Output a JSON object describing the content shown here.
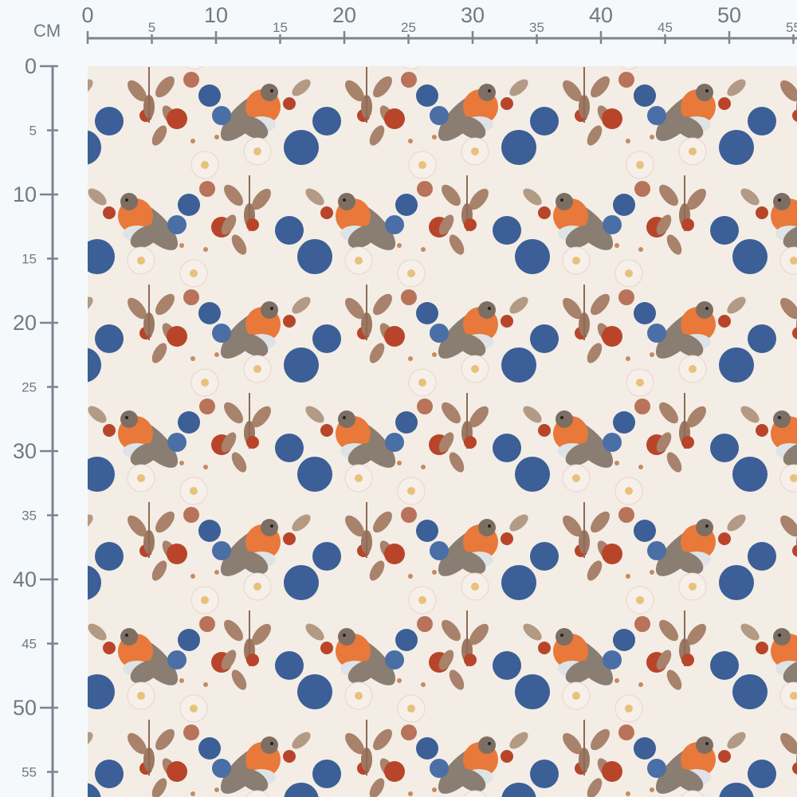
{
  "ruler": {
    "unit": "CM",
    "color": "#7a8590",
    "horizontal": {
      "major_labels": [
        "0",
        "10",
        "20",
        "30",
        "40",
        "50"
      ],
      "minor_labels": [
        "5",
        "15",
        "25",
        "35",
        "45",
        "55"
      ]
    },
    "vertical": {
      "major_labels": [
        "0",
        "10",
        "20",
        "30",
        "40",
        "50"
      ],
      "minor_labels": [
        "5",
        "15",
        "25",
        "35",
        "45",
        "55"
      ]
    }
  },
  "fabric": {
    "pattern": "robins, blackberries, white blossoms and autumn leaves",
    "colors": {
      "background": "#f3ede6",
      "robin_breast": "#e8793a",
      "robin_wing": "#8a7d72",
      "berry_blue": "#3b5f96",
      "berry_red": "#b8452a",
      "leaf": "#a8826a",
      "blossom": "#f7efe9"
    }
  }
}
